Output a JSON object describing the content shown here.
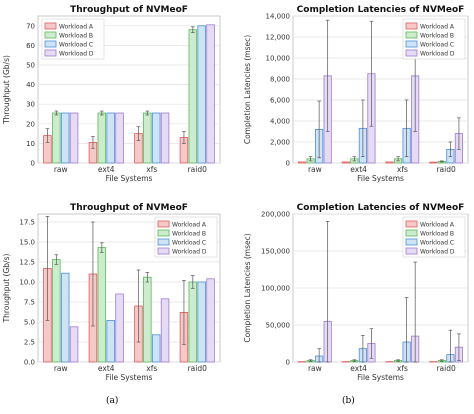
{
  "figure": {
    "panel_labels": [
      "(a)",
      "(b)"
    ]
  },
  "style": {
    "series_colors": [
      "#e05c5c",
      "#5cb85c",
      "#4a90d9",
      "#a07ad0"
    ],
    "series_fills": [
      "#f6c9c9",
      "#cdeccd",
      "#cfe3f7",
      "#e6dbf5"
    ]
  },
  "chart_data": [
    {
      "type": "bar",
      "title": "Throughput of NVMeoF",
      "xlabel": "File Systems",
      "ylabel": "Throughput (Gb/s)",
      "ylim": [
        0,
        75
      ],
      "yticks": [
        0,
        10,
        20,
        30,
        40,
        50,
        60,
        70
      ],
      "ytick_labels": [
        "0",
        "10",
        "20",
        "30",
        "40",
        "50",
        "60",
        "70"
      ],
      "categories": [
        "raw",
        "ext4",
        "xfs",
        "raid0"
      ],
      "grid": true,
      "legend": "top-left",
      "series": [
        {
          "name": "Workload A",
          "values": [
            14,
            10.5,
            15,
            13
          ],
          "errors": [
            3.5,
            3,
            3.5,
            3
          ]
        },
        {
          "name": "Workload B",
          "values": [
            25.5,
            25.5,
            25.5,
            68
          ],
          "errors": [
            1,
            1,
            1,
            1.5
          ]
        },
        {
          "name": "Workload C",
          "values": [
            25.5,
            25.5,
            25.5,
            70
          ],
          "errors": [
            0,
            0,
            0,
            0
          ]
        },
        {
          "name": "Workload D",
          "values": [
            25.5,
            25.5,
            25.5,
            70.5
          ],
          "errors": [
            0,
            0,
            0,
            0
          ]
        }
      ]
    },
    {
      "type": "bar",
      "title": "Completion Latencies of NVMeoF",
      "xlabel": "File Systems",
      "ylabel": "Completion Latencies (msec)",
      "ylim": [
        0,
        14000
      ],
      "yticks": [
        0,
        2000,
        4000,
        6000,
        8000,
        10000,
        12000,
        14000
      ],
      "ytick_labels": [
        "0",
        "2,000",
        "4,000",
        "6,000",
        "8,000",
        "10,000",
        "12,000",
        "14,000"
      ],
      "categories": [
        "raw",
        "ext4",
        "xfs",
        "raid0"
      ],
      "grid": true,
      "legend": "top-right",
      "series": [
        {
          "name": "Workload A",
          "values": [
            100,
            100,
            100,
            80
          ],
          "errors": [
            0,
            0,
            0,
            0
          ]
        },
        {
          "name": "Workload B",
          "values": [
            400,
            400,
            400,
            150
          ],
          "errors": [
            200,
            200,
            200,
            50
          ]
        },
        {
          "name": "Workload C",
          "values": [
            3200,
            3300,
            3300,
            1300
          ],
          "errors": [
            2700,
            2700,
            2700,
            700
          ]
        },
        {
          "name": "Workload D",
          "values": [
            8300,
            8500,
            8300,
            2800
          ],
          "errors": [
            5300,
            5000,
            5300,
            1500
          ]
        }
      ]
    },
    {
      "type": "bar",
      "title": "Throughput of NVMeoF",
      "xlabel": "File Systems",
      "ylabel": "Throughput (Gb/s)",
      "ylim": [
        0,
        18.5
      ],
      "yticks": [
        0,
        2.5,
        5,
        7.5,
        10,
        12.5,
        15,
        17.5
      ],
      "ytick_labels": [
        "0.0",
        "2.5",
        "5.0",
        "7.5",
        "10.0",
        "12.5",
        "15.0",
        "17.5"
      ],
      "categories": [
        "raw",
        "ext4",
        "xfs",
        "raid0"
      ],
      "grid": true,
      "legend": "top-right",
      "series": [
        {
          "name": "Workload A",
          "values": [
            11.7,
            11,
            7,
            6.2
          ],
          "errors": [
            6.5,
            6.5,
            4.5,
            4
          ]
        },
        {
          "name": "Workload B",
          "values": [
            12.8,
            14.3,
            10.6,
            10
          ],
          "errors": [
            0.6,
            0.6,
            0.6,
            0.8
          ]
        },
        {
          "name": "Workload C",
          "values": [
            11.1,
            5.2,
            3.4,
            10
          ],
          "errors": [
            0,
            0,
            0,
            0
          ]
        },
        {
          "name": "Workload D",
          "values": [
            4.4,
            8.5,
            7.9,
            10.4
          ],
          "errors": [
            0,
            0,
            0,
            0
          ]
        }
      ]
    },
    {
      "type": "bar",
      "title": "Completion Latencies of NVMeoF",
      "xlabel": "File Systems",
      "ylabel": "Completion Latencies (msec)",
      "ylim": [
        0,
        200000
      ],
      "yticks": [
        0,
        50000,
        100000,
        150000,
        200000
      ],
      "ytick_labels": [
        "0",
        "50,000",
        "100,000",
        "150,000",
        "200,000"
      ],
      "categories": [
        "raw",
        "ext4",
        "xfs",
        "raid0"
      ],
      "grid": true,
      "legend": "top-right",
      "series": [
        {
          "name": "Workload A",
          "values": [
            500,
            500,
            500,
            500
          ],
          "errors": [
            0,
            0,
            0,
            0
          ]
        },
        {
          "name": "Workload B",
          "values": [
            2000,
            2000,
            2000,
            2000
          ],
          "errors": [
            1000,
            1000,
            1000,
            1000
          ]
        },
        {
          "name": "Workload C",
          "values": [
            8000,
            18000,
            27000,
            10000
          ],
          "errors": [
            10000,
            18000,
            60000,
            33000
          ]
        },
        {
          "name": "Workload D",
          "values": [
            55000,
            25000,
            35000,
            20000
          ],
          "errors": [
            135000,
            20000,
            100000,
            18000
          ]
        }
      ]
    }
  ]
}
